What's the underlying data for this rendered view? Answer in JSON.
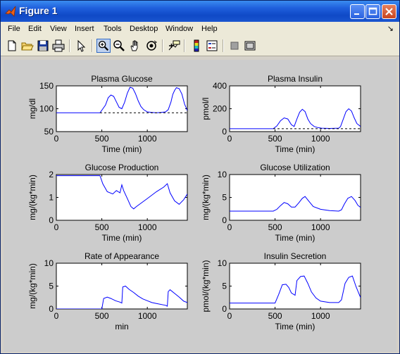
{
  "window": {
    "title": "Figure 1"
  },
  "menu": [
    "File",
    "Edit",
    "View",
    "Insert",
    "Tools",
    "Desktop",
    "Window",
    "Help"
  ],
  "toolbar_icons": [
    "new-file-icon",
    "open-folder-icon",
    "save-icon",
    "print-icon",
    "arrow-pointer-icon",
    "zoom-in-icon",
    "zoom-out-icon",
    "pan-hand-icon",
    "rotate-3d-icon",
    "data-cursor-icon",
    "colorbar-icon",
    "legend-icon",
    "hide-plot-tools-icon",
    "show-plot-tools-icon"
  ],
  "chart_data": [
    {
      "type": "line",
      "title": "Plasma Glucose",
      "xlabel": "Time (min)",
      "ylabel": "mg/dl",
      "xlim": [
        0,
        1440
      ],
      "ylim": [
        50,
        150
      ],
      "xticks": [
        0,
        500,
        1000
      ],
      "yticks": [
        50,
        100,
        150
      ],
      "series": [
        {
          "style": "solid",
          "x": [
            0,
            480,
            540,
            570,
            600,
            630,
            660,
            690,
            720,
            750,
            780,
            810,
            840,
            870,
            900,
            930,
            960,
            1000,
            1050,
            1100,
            1150,
            1200,
            1230,
            1260,
            1280,
            1300,
            1320,
            1350,
            1380,
            1410,
            1440
          ],
          "y": [
            91,
            91,
            108,
            124,
            130,
            127,
            115,
            103,
            100,
            114,
            134,
            147,
            145,
            133,
            117,
            105,
            98,
            93,
            92,
            91,
            92,
            93,
            98,
            115,
            131,
            140,
            146,
            144,
            132,
            110,
            96
          ]
        },
        {
          "style": "dashed",
          "x": [
            480,
            1440
          ],
          "y": [
            91,
            91
          ]
        }
      ]
    },
    {
      "type": "line",
      "title": "Plasma Insulin",
      "xlabel": "Time (min)",
      "ylabel": "pmol/l",
      "xlim": [
        0,
        1440
      ],
      "ylim": [
        0,
        400
      ],
      "xticks": [
        0,
        500,
        1000
      ],
      "yticks": [
        0,
        200,
        400
      ],
      "series": [
        {
          "style": "solid",
          "x": [
            0,
            480,
            520,
            560,
            600,
            640,
            680,
            710,
            740,
            770,
            800,
            830,
            860,
            890,
            930,
            970,
            1010,
            1100,
            1200,
            1220,
            1250,
            1280,
            1310,
            1340,
            1370,
            1400,
            1440
          ],
          "y": [
            25,
            25,
            50,
            95,
            120,
            110,
            60,
            45,
            110,
            170,
            195,
            175,
            110,
            70,
            45,
            35,
            30,
            28,
            30,
            45,
            110,
            175,
            200,
            180,
            120,
            70,
            45
          ]
        },
        {
          "style": "dashed",
          "x": [
            480,
            1440
          ],
          "y": [
            25,
            25
          ]
        }
      ]
    },
    {
      "type": "line",
      "title": "Glucose Production",
      "xlabel": "Time (min)",
      "ylabel": "mg/(kg*min)",
      "xlim": [
        0,
        1440
      ],
      "ylim": [
        0,
        2
      ],
      "xticks": [
        0,
        500,
        1000
      ],
      "yticks": [
        0,
        1,
        2
      ],
      "series": [
        {
          "style": "solid",
          "x": [
            0,
            480,
            510,
            560,
            620,
            660,
            700,
            720,
            740,
            780,
            820,
            850,
            880,
            1000,
            1100,
            1180,
            1220,
            1250,
            1300,
            1350,
            1400,
            1440
          ],
          "y": [
            1.95,
            1.95,
            1.6,
            1.25,
            1.15,
            1.3,
            1.2,
            1.55,
            1.3,
            0.95,
            0.6,
            0.5,
            0.6,
            0.95,
            1.25,
            1.45,
            1.6,
            1.2,
            0.85,
            0.7,
            0.9,
            1.15
          ]
        }
      ]
    },
    {
      "type": "line",
      "title": "Glucose Utilization",
      "xlabel": "Time (min)",
      "ylabel": "mg/(kg*min)",
      "xlim": [
        0,
        1440
      ],
      "ylim": [
        0,
        10
      ],
      "xticks": [
        0,
        500,
        1000
      ],
      "yticks": [
        0,
        5,
        10
      ],
      "series": [
        {
          "style": "solid",
          "x": [
            0,
            480,
            520,
            560,
            600,
            640,
            680,
            720,
            760,
            800,
            830,
            870,
            920,
            1000,
            1100,
            1200,
            1230,
            1260,
            1300,
            1340,
            1380,
            1410,
            1440
          ],
          "y": [
            2,
            2,
            2.4,
            3.2,
            3.9,
            3.6,
            2.9,
            2.9,
            3.8,
            4.8,
            5.2,
            4.2,
            3,
            2.4,
            2.1,
            2,
            2.3,
            3.5,
            4.8,
            5.2,
            4.3,
            3.3,
            2.8
          ]
        }
      ]
    },
    {
      "type": "line",
      "title": "Rate of Appearance",
      "xlabel": "min",
      "ylabel": "mg/(kg*min)",
      "xlim": [
        0,
        1440
      ],
      "ylim": [
        0,
        10
      ],
      "xticks": [
        0,
        500,
        1000
      ],
      "yticks": [
        0,
        5,
        10
      ],
      "series": [
        {
          "style": "solid",
          "x": [
            0,
            500,
            520,
            560,
            600,
            650,
            700,
            720,
            730,
            760,
            800,
            850,
            900,
            950,
            1000,
            1050,
            1100,
            1200,
            1220,
            1230,
            1250,
            1300,
            1350,
            1400,
            1440
          ],
          "y": [
            0,
            0,
            2.3,
            2.6,
            2.3,
            1.8,
            1.5,
            1.3,
            4.8,
            5,
            4.3,
            3.6,
            2.8,
            2.2,
            1.8,
            1.4,
            1.2,
            0.8,
            0.6,
            3.8,
            4.2,
            3.4,
            2.6,
            1.7,
            1.4
          ]
        }
      ]
    },
    {
      "type": "line",
      "title": "Insulin Secretion",
      "xlabel": "Time (min)",
      "ylabel": "pmol/(kg*min)",
      "xlim": [
        0,
        1440
      ],
      "ylim": [
        0,
        10
      ],
      "xticks": [
        0,
        500,
        1000
      ],
      "yticks": [
        0,
        5,
        10
      ],
      "series": [
        {
          "style": "solid",
          "x": [
            0,
            500,
            540,
            580,
            620,
            650,
            680,
            720,
            740,
            780,
            820,
            860,
            900,
            950,
            1000,
            1100,
            1200,
            1230,
            1270,
            1310,
            1350,
            1390,
            1440
          ],
          "y": [
            1.3,
            1.3,
            3.2,
            5.3,
            5.4,
            4.7,
            3.5,
            3,
            6.2,
            7.1,
            7.2,
            5.6,
            3.7,
            2.4,
            1.7,
            1.4,
            1.4,
            2,
            5.6,
            6.9,
            7.2,
            4.9,
            2.5
          ]
        }
      ]
    }
  ]
}
